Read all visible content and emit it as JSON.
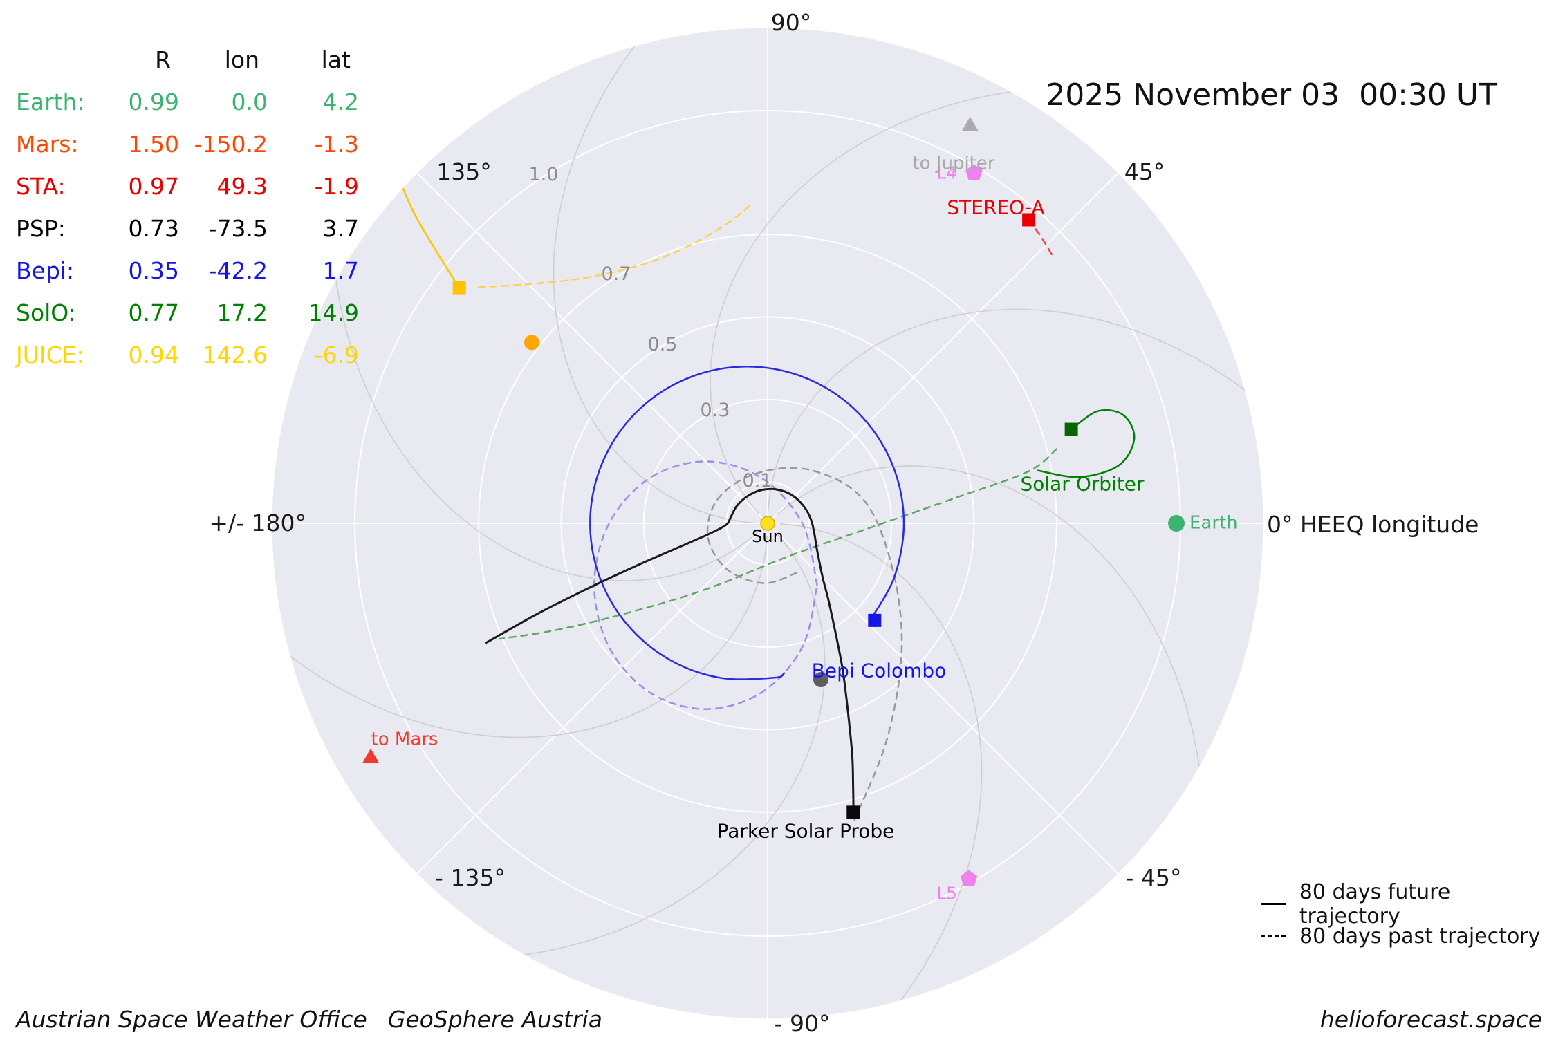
{
  "title": "2025 November 03  00:30 UT",
  "table": {
    "headers": [
      "R",
      "lon",
      "lat"
    ],
    "rows": [
      {
        "name": "Earth:",
        "R": "0.99",
        "lon": "0.0",
        "lat": "4.2",
        "color": "#3cb371"
      },
      {
        "name": "Mars:",
        "R": "1.50",
        "lon": "-150.2",
        "lat": "-1.3",
        "color": "#ff4500"
      },
      {
        "name": "STA:",
        "R": "0.97",
        "lon": "49.3",
        "lat": "-1.9",
        "color": "#e60000"
      },
      {
        "name": "PSP:",
        "R": "0.73",
        "lon": "-73.5",
        "lat": "3.7",
        "color": "#000000"
      },
      {
        "name": "Bepi:",
        "R": "0.35",
        "lon": "-42.2",
        "lat": "1.7",
        "color": "#1515e5"
      },
      {
        "name": "SolO:",
        "R": "0.77",
        "lon": "17.2",
        "lat": "14.9",
        "color": "#008000"
      },
      {
        "name": "JUICE:",
        "R": "0.94",
        "lon": "142.6",
        "lat": "-6.9",
        "color": "#ffd700"
      }
    ]
  },
  "angle_labels": {
    "a90": "90°",
    "a45": "45°",
    "a135": "135°",
    "a180": "+/- 180°",
    "a0": "0° HEEQ longitude",
    "am135": "- 135°",
    "am90": "- 90°",
    "am45": "- 45°"
  },
  "radius_labels": {
    "r01": "0.1",
    "r03": "0.3",
    "r05": "0.5",
    "r07": "0.7",
    "r10": "1.0"
  },
  "legend": {
    "future": "80 days future trajectory",
    "past": "80 days past trajectory"
  },
  "footer": {
    "office": "Austrian Space Weather Office",
    "agency": "GeoSphere Austria",
    "site": "helioforecast.space"
  },
  "chart_data": {
    "type": "scatter",
    "projection": "polar",
    "title": "2025 November 03  00:30 UT",
    "frame": "HEEQ longitude, 0° toward Earth",
    "r_unit": "AU",
    "r_max": 1.2,
    "r_ticks": [
      0.1,
      0.3,
      0.5,
      0.7,
      1.0
    ],
    "angle_ticks_deg": [
      0,
      45,
      90,
      135,
      180,
      -135,
      -90,
      -45
    ],
    "bodies": [
      {
        "name": "Sun",
        "label": "Sun",
        "lon_deg": 0,
        "R_au": 0,
        "marker": "circle",
        "size": 10,
        "color": "#ffdf22"
      },
      {
        "name": "Earth",
        "label": "Earth",
        "lon_deg": 0.0,
        "R_au": 0.99,
        "marker": "circle",
        "size": 12,
        "color": "#3cb371"
      },
      {
        "name": "Venus",
        "lon_deg": 142.5,
        "R_au": 0.72,
        "marker": "circle",
        "size": 11,
        "color": "#ffa500"
      },
      {
        "name": "Mercury",
        "lon_deg": -71.2,
        "R_au": 0.4,
        "marker": "circle",
        "size": 11,
        "color": "#5f5f5f"
      },
      {
        "name": "STEREO-A",
        "label": "STEREO-A",
        "lon_deg": 49.3,
        "R_au": 0.97,
        "marker": "square",
        "size": 19,
        "color": "#e60000"
      },
      {
        "name": "Solar Orbiter",
        "label": "Solar Orbiter",
        "lon_deg": 17.2,
        "R_au": 0.77,
        "marker": "square",
        "size": 19,
        "color": "#066606"
      },
      {
        "name": "Bepi Colombo",
        "label": "Bepi Colombo",
        "lon_deg": -42.2,
        "R_au": 0.35,
        "marker": "square",
        "size": 19,
        "color": "#1515e5"
      },
      {
        "name": "Parker Solar Probe",
        "label": "Parker Solar Probe",
        "lon_deg": -73.5,
        "R_au": 0.73,
        "marker": "square",
        "size": 19,
        "color": "#0a0a0a"
      },
      {
        "name": "JUICE",
        "lon_deg": 142.6,
        "R_au": 0.94,
        "marker": "square",
        "size": 19,
        "color": "#ffc400"
      },
      {
        "name": "L4",
        "label": "L4",
        "lon_deg": 59.5,
        "R_au": 0.985,
        "marker": "pentagon",
        "size": 13,
        "color": "#ee82ee"
      },
      {
        "name": "L5",
        "label": "L5",
        "lon_deg": -60.5,
        "R_au": 0.99,
        "marker": "pentagon",
        "size": 13,
        "color": "#ee82ee"
      },
      {
        "name": "to Jupiter",
        "label": "to Jupiter",
        "lon_deg": 63.0,
        "R_au": 1.08,
        "marker": "triangle",
        "size": 12,
        "color": "#ababab"
      },
      {
        "name": "to Mars",
        "label": "to Mars",
        "lon_deg": -149.4,
        "R_au": 1.117,
        "marker": "triangle",
        "size": 12,
        "color": "#f03a2e"
      }
    ],
    "trajectories": [
      {
        "name": "Bepi past",
        "style": "dashed",
        "color": "#9a91e8",
        "width": 2.5,
        "points_au": [
          [
            0.12,
            -0.15
          ],
          [
            0.084,
            0.0
          ],
          [
            -0.015,
            0.11
          ],
          [
            -0.15,
            0.15
          ],
          [
            -0.285,
            0.11
          ],
          [
            -0.384,
            0.0
          ],
          [
            -0.42,
            -0.15
          ],
          [
            -0.384,
            -0.3
          ],
          [
            -0.285,
            -0.41
          ],
          [
            -0.15,
            -0.45
          ],
          [
            -0.015,
            -0.41
          ],
          [
            0.084,
            -0.3
          ],
          [
            0.12,
            -0.15
          ]
        ]
      },
      {
        "name": "SolO past",
        "style": "dashed",
        "color": "#5fa85f",
        "width": 2.5,
        "points_au": [
          [
            0.7,
            0.18
          ],
          [
            0.63,
            0.125
          ],
          [
            0.45,
            0.06
          ],
          [
            0.25,
            -0.01
          ],
          [
            0.05,
            -0.08
          ],
          [
            -0.15,
            -0.16
          ],
          [
            -0.35,
            -0.22
          ],
          [
            -0.52,
            -0.26
          ],
          [
            -0.65,
            -0.28
          ]
        ]
      },
      {
        "name": "PSP past",
        "style": "dashed",
        "color": "#999999",
        "width": 2.5,
        "points_au": [
          [
            0.21,
            -0.72
          ],
          [
            0.29,
            -0.52
          ],
          [
            0.325,
            -0.3
          ],
          [
            0.3,
            -0.1
          ],
          [
            0.23,
            0.06
          ],
          [
            0.1,
            0.13
          ],
          [
            -0.03,
            0.12
          ],
          [
            -0.12,
            0.06
          ],
          [
            -0.145,
            -0.03
          ],
          [
            -0.1,
            -0.11
          ],
          [
            -0.01,
            -0.145
          ],
          [
            0.07,
            -0.12
          ]
        ]
      },
      {
        "name": "JUICE past",
        "style": "dashed",
        "color": "#ffd24d",
        "width": 2.5,
        "points_au": [
          [
            -0.7,
            0.572
          ],
          [
            -0.6,
            0.578
          ],
          [
            -0.49,
            0.588
          ],
          [
            -0.38,
            0.607
          ],
          [
            -0.27,
            0.638
          ],
          [
            -0.17,
            0.683
          ],
          [
            -0.09,
            0.732
          ],
          [
            -0.045,
            0.768
          ]
        ]
      },
      {
        "name": "STA past",
        "style": "dashed",
        "color": "#ee4444",
        "width": 2.5,
        "points_au": [
          [
            0.632,
            0.735
          ],
          [
            0.66,
            0.698
          ],
          [
            0.688,
            0.652
          ]
        ]
      },
      {
        "name": "Bepi future",
        "style": "solid",
        "color": "#2a2ae0",
        "width": 2.5,
        "points_au": [
          [
            0.249,
            -0.234
          ],
          [
            0.307,
            -0.13
          ],
          [
            0.33,
            0.0
          ],
          [
            0.307,
            0.13
          ],
          [
            0.241,
            0.244
          ],
          [
            0.14,
            0.329
          ],
          [
            0.016,
            0.374
          ],
          [
            -0.116,
            0.374
          ],
          [
            -0.24,
            0.329
          ],
          [
            -0.341,
            0.244
          ],
          [
            -0.407,
            0.13
          ],
          [
            -0.43,
            0.0
          ],
          [
            -0.407,
            -0.13
          ],
          [
            -0.341,
            -0.244
          ],
          [
            -0.24,
            -0.329
          ],
          [
            -0.116,
            -0.374
          ],
          [
            0.016,
            -0.374
          ],
          [
            0.04,
            -0.363
          ]
        ]
      },
      {
        "name": "SolO future",
        "style": "solid",
        "color": "#008000",
        "width": 2.5,
        "points_au": [
          [
            0.736,
            0.228
          ],
          [
            0.8,
            0.272
          ],
          [
            0.862,
            0.262
          ],
          [
            0.888,
            0.205
          ],
          [
            0.85,
            0.14
          ],
          [
            0.755,
            0.112
          ],
          [
            0.655,
            0.128
          ]
        ]
      },
      {
        "name": "JUICE future",
        "style": "solid",
        "color": "#ffc400",
        "width": 2.5,
        "points_au": [
          [
            -0.747,
            0.571
          ],
          [
            -0.8,
            0.655
          ],
          [
            -0.853,
            0.745
          ],
          [
            -0.885,
            0.815
          ]
        ]
      },
      {
        "name": "PSP future",
        "style": "solid",
        "color": "#1a1a1a",
        "width": 3,
        "points_au": [
          [
            -0.681,
            -0.289
          ],
          [
            -0.559,
            -0.22
          ],
          [
            -0.442,
            -0.161
          ],
          [
            -0.323,
            -0.105
          ],
          [
            -0.213,
            -0.057
          ],
          [
            -0.138,
            -0.024
          ],
          [
            -0.1,
            -0.003
          ],
          [
            -0.089,
            0.016
          ],
          [
            -0.074,
            0.043
          ],
          [
            -0.047,
            0.067
          ],
          [
            -0.014,
            0.081
          ],
          [
            0.022,
            0.082
          ],
          [
            0.058,
            0.069
          ],
          [
            0.088,
            0.041
          ],
          [
            0.105,
            0.009
          ],
          [
            0.113,
            -0.024
          ],
          [
            0.118,
            -0.055
          ],
          [
            0.125,
            -0.091
          ],
          [
            0.134,
            -0.134
          ],
          [
            0.148,
            -0.189
          ],
          [
            0.164,
            -0.263
          ],
          [
            0.182,
            -0.356
          ],
          [
            0.195,
            -0.46
          ],
          [
            0.205,
            -0.564
          ],
          [
            0.207,
            -0.637
          ],
          [
            0.208,
            -0.7
          ]
        ]
      }
    ]
  }
}
